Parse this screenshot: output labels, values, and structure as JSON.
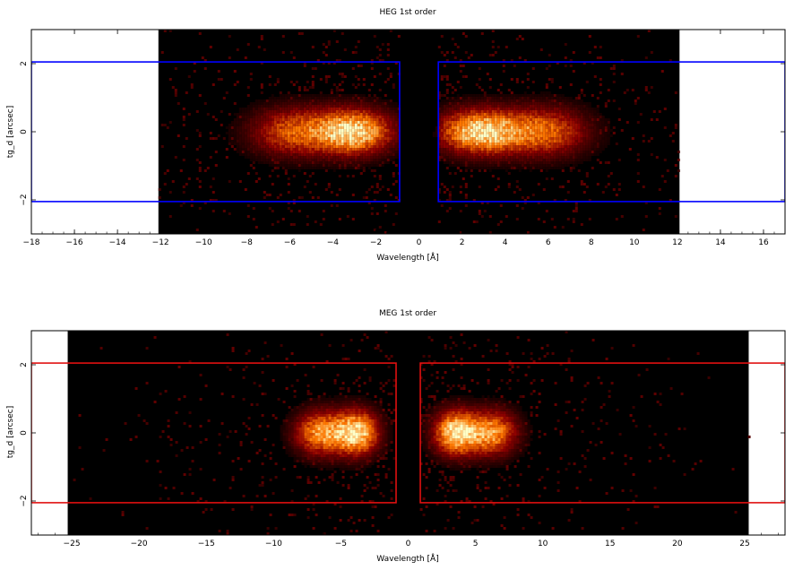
{
  "chart_data": [
    {
      "type": "heatmap",
      "title": "HEG 1st order",
      "xlabel": "Wavelength [Å]",
      "ylabel": "tg_d [arcsec]",
      "xlim": [
        -18,
        17
      ],
      "ylim": [
        -3,
        3
      ],
      "x_ticks": [
        -18,
        -16,
        -14,
        -12,
        -10,
        -8,
        -6,
        -4,
        -2,
        0,
        2,
        4,
        6,
        8,
        10,
        12,
        14,
        16
      ],
      "y_ticks": [
        -2,
        0,
        2
      ],
      "x_tick_labels": [
        "−18",
        "−16",
        "−14",
        "−12",
        "−10",
        "−8",
        "−6",
        "−4",
        "−2",
        "0",
        "2",
        "4",
        "6",
        "8",
        "10",
        "12",
        "14",
        "16"
      ],
      "y_tick_labels": [
        "−2",
        "0",
        "2"
      ],
      "data_extent_x": [
        -12.1,
        12.1
      ],
      "peaks": [
        {
          "x": -5.8,
          "y": 0,
          "intensity": 0.6,
          "sx": 1.4,
          "sy": 0.5
        },
        {
          "x": -3.0,
          "y": 0,
          "intensity": 1.0,
          "sx": 1.2,
          "sy": 0.45
        },
        {
          "x": 2.8,
          "y": 0,
          "intensity": 1.0,
          "sx": 1.3,
          "sy": 0.45
        },
        {
          "x": 5.8,
          "y": 0,
          "intensity": 0.65,
          "sx": 1.4,
          "sy": 0.5
        }
      ],
      "extraction_regions": [
        {
          "x0": -18,
          "x1": -0.9,
          "y0": -2.05,
          "y1": 2.05
        },
        {
          "x0": 0.9,
          "x1": 17,
          "y0": -2.05,
          "y1": 2.05
        }
      ],
      "region_color": "#0000ff"
    },
    {
      "type": "heatmap",
      "title": "MEG 1st order",
      "xlabel": "Wavelength [Å]",
      "ylabel": "tg_d [arcsec]",
      "xlim": [
        -28,
        28
      ],
      "ylim": [
        -3,
        3
      ],
      "x_ticks": [
        -25,
        -20,
        -15,
        -10,
        -5,
        0,
        5,
        10,
        15,
        20,
        25
      ],
      "y_ticks": [
        -2,
        0,
        2
      ],
      "x_tick_labels": [
        "−25",
        "−20",
        "−15",
        "−10",
        "−5",
        "0",
        "5",
        "10",
        "15",
        "20",
        "25"
      ],
      "y_tick_labels": [
        "−2",
        "0",
        "2"
      ],
      "data_extent_x": [
        -25.3,
        25.3
      ],
      "peaks": [
        {
          "x": -6.5,
          "y": 0,
          "intensity": 0.8,
          "sx": 1.3,
          "sy": 0.45
        },
        {
          "x": -3.8,
          "y": 0,
          "intensity": 1.0,
          "sx": 1.1,
          "sy": 0.45
        },
        {
          "x": 3.5,
          "y": 0,
          "intensity": 1.0,
          "sx": 1.1,
          "sy": 0.45
        },
        {
          "x": 6.2,
          "y": 0,
          "intensity": 0.8,
          "sx": 1.3,
          "sy": 0.45
        }
      ],
      "extraction_regions": [
        {
          "x0": -28,
          "x1": -0.9,
          "y0": -2.05,
          "y1": 2.05
        },
        {
          "x0": 0.9,
          "x1": 28,
          "y0": -2.05,
          "y1": 2.05
        }
      ],
      "region_color": "#e01010"
    }
  ]
}
